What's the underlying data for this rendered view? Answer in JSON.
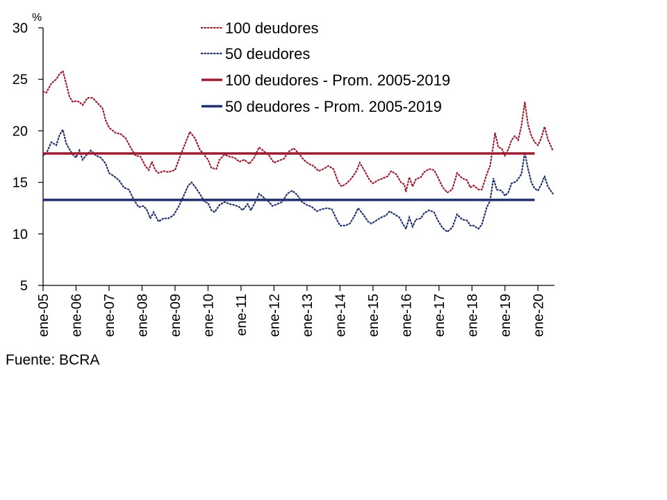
{
  "colors": {
    "series100": "#9b1b30",
    "series50": "#1f2f6b",
    "axis": "#000000"
  },
  "source": "Fuente: BCRA",
  "chart_data": {
    "type": "line",
    "unit_label": "%",
    "ylim": [
      5,
      30
    ],
    "yticks": [
      5,
      10,
      15,
      20,
      25,
      30
    ],
    "xlim": [
      2005.0,
      2020.5
    ],
    "xtick_labels": [
      "ene-05",
      "ene-06",
      "ene-07",
      "ene-08",
      "ene-09",
      "ene-10",
      "ene-11",
      "ene-12",
      "ene-13",
      "ene-14",
      "ene-15",
      "ene-16",
      "ene-17",
      "ene-18",
      "ene-19",
      "ene-20"
    ],
    "grid": false,
    "legend_position": "top",
    "series": [
      {
        "name": "100 deudores",
        "style": "dotted",
        "color": "#9b1b30",
        "points": [
          [
            2005.0,
            23.8
          ],
          [
            2005.1,
            23.7
          ],
          [
            2005.25,
            24.6
          ],
          [
            2005.4,
            25.0
          ],
          [
            2005.5,
            25.5
          ],
          [
            2005.6,
            25.8
          ],
          [
            2005.7,
            24.6
          ],
          [
            2005.8,
            23.3
          ],
          [
            2005.9,
            22.8
          ],
          [
            2006.0,
            22.9
          ],
          [
            2006.1,
            22.8
          ],
          [
            2006.2,
            22.5
          ],
          [
            2006.35,
            23.2
          ],
          [
            2006.5,
            23.2
          ],
          [
            2006.65,
            22.7
          ],
          [
            2006.8,
            22.2
          ],
          [
            2006.9,
            21.0
          ],
          [
            2007.0,
            20.3
          ],
          [
            2007.2,
            19.8
          ],
          [
            2007.35,
            19.7
          ],
          [
            2007.5,
            19.3
          ],
          [
            2007.65,
            18.4
          ],
          [
            2007.8,
            17.6
          ],
          [
            2007.95,
            17.5
          ],
          [
            2008.1,
            16.6
          ],
          [
            2008.2,
            16.2
          ],
          [
            2008.3,
            17.0
          ],
          [
            2008.4,
            16.2
          ],
          [
            2008.5,
            15.9
          ],
          [
            2008.65,
            16.1
          ],
          [
            2008.8,
            16.0
          ],
          [
            2009.0,
            16.2
          ],
          [
            2009.15,
            17.5
          ],
          [
            2009.3,
            18.7
          ],
          [
            2009.45,
            19.9
          ],
          [
            2009.6,
            19.3
          ],
          [
            2009.75,
            18.2
          ],
          [
            2009.9,
            17.6
          ],
          [
            2010.0,
            17.2
          ],
          [
            2010.1,
            16.4
          ],
          [
            2010.25,
            16.3
          ],
          [
            2010.35,
            17.2
          ],
          [
            2010.5,
            17.7
          ],
          [
            2010.65,
            17.5
          ],
          [
            2010.8,
            17.4
          ],
          [
            2010.95,
            17.0
          ],
          [
            2011.1,
            17.2
          ],
          [
            2011.25,
            16.8
          ],
          [
            2011.4,
            17.4
          ],
          [
            2011.55,
            18.4
          ],
          [
            2011.7,
            18.0
          ],
          [
            2011.85,
            17.6
          ],
          [
            2012.0,
            16.9
          ],
          [
            2012.15,
            17.1
          ],
          [
            2012.3,
            17.3
          ],
          [
            2012.45,
            18.0
          ],
          [
            2012.6,
            18.3
          ],
          [
            2012.75,
            17.8
          ],
          [
            2012.9,
            17.2
          ],
          [
            2013.05,
            16.8
          ],
          [
            2013.2,
            16.6
          ],
          [
            2013.35,
            16.1
          ],
          [
            2013.5,
            16.3
          ],
          [
            2013.65,
            16.6
          ],
          [
            2013.8,
            16.3
          ],
          [
            2013.95,
            15.0
          ],
          [
            2014.05,
            14.6
          ],
          [
            2014.2,
            14.9
          ],
          [
            2014.35,
            15.4
          ],
          [
            2014.5,
            16.1
          ],
          [
            2014.6,
            16.9
          ],
          [
            2014.75,
            16.1
          ],
          [
            2014.9,
            15.2
          ],
          [
            2015.0,
            14.9
          ],
          [
            2015.15,
            15.2
          ],
          [
            2015.3,
            15.4
          ],
          [
            2015.45,
            15.6
          ],
          [
            2015.55,
            16.1
          ],
          [
            2015.7,
            15.8
          ],
          [
            2015.85,
            15.0
          ],
          [
            2015.95,
            14.8
          ],
          [
            2016.0,
            14.1
          ],
          [
            2016.1,
            15.5
          ],
          [
            2016.2,
            14.6
          ],
          [
            2016.3,
            15.3
          ],
          [
            2016.45,
            15.5
          ],
          [
            2016.55,
            16.0
          ],
          [
            2016.7,
            16.3
          ],
          [
            2016.85,
            16.2
          ],
          [
            2016.95,
            15.6
          ],
          [
            2017.1,
            14.6
          ],
          [
            2017.25,
            14.0
          ],
          [
            2017.4,
            14.3
          ],
          [
            2017.55,
            15.9
          ],
          [
            2017.7,
            15.4
          ],
          [
            2017.85,
            15.2
          ],
          [
            2017.95,
            14.5
          ],
          [
            2018.05,
            14.7
          ],
          [
            2018.2,
            14.3
          ],
          [
            2018.3,
            14.3
          ],
          [
            2018.45,
            15.8
          ],
          [
            2018.55,
            16.6
          ],
          [
            2018.65,
            18.7
          ],
          [
            2018.7,
            19.8
          ],
          [
            2018.8,
            18.4
          ],
          [
            2018.9,
            18.3
          ],
          [
            2019.0,
            17.6
          ],
          [
            2019.1,
            18.2
          ],
          [
            2019.2,
            19.1
          ],
          [
            2019.3,
            19.5
          ],
          [
            2019.4,
            19.1
          ],
          [
            2019.5,
            20.5
          ],
          [
            2019.6,
            22.8
          ],
          [
            2019.7,
            20.6
          ],
          [
            2019.8,
            19.5
          ],
          [
            2019.9,
            18.9
          ],
          [
            2020.0,
            18.6
          ],
          [
            2020.1,
            19.3
          ],
          [
            2020.2,
            20.4
          ],
          [
            2020.3,
            19.2
          ],
          [
            2020.45,
            18.1
          ]
        ]
      },
      {
        "name": "50 deudores",
        "style": "dotted",
        "color": "#1f2f6b",
        "points": [
          [
            2005.0,
            17.6
          ],
          [
            2005.1,
            17.8
          ],
          [
            2005.25,
            18.9
          ],
          [
            2005.4,
            18.6
          ],
          [
            2005.5,
            19.6
          ],
          [
            2005.6,
            20.1
          ],
          [
            2005.7,
            18.8
          ],
          [
            2005.8,
            18.2
          ],
          [
            2005.9,
            17.7
          ],
          [
            2006.0,
            17.4
          ],
          [
            2006.1,
            18.1
          ],
          [
            2006.2,
            17.2
          ],
          [
            2006.3,
            17.6
          ],
          [
            2006.45,
            18.1
          ],
          [
            2006.6,
            17.6
          ],
          [
            2006.75,
            17.4
          ],
          [
            2006.9,
            16.8
          ],
          [
            2007.0,
            15.9
          ],
          [
            2007.15,
            15.6
          ],
          [
            2007.3,
            15.2
          ],
          [
            2007.45,
            14.5
          ],
          [
            2007.6,
            14.3
          ],
          [
            2007.75,
            13.3
          ],
          [
            2007.9,
            12.6
          ],
          [
            2008.05,
            12.7
          ],
          [
            2008.15,
            12.3
          ],
          [
            2008.25,
            11.5
          ],
          [
            2008.35,
            12.1
          ],
          [
            2008.5,
            11.2
          ],
          [
            2008.65,
            11.5
          ],
          [
            2008.8,
            11.5
          ],
          [
            2008.95,
            11.8
          ],
          [
            2009.1,
            12.6
          ],
          [
            2009.25,
            13.6
          ],
          [
            2009.4,
            14.7
          ],
          [
            2009.5,
            15.0
          ],
          [
            2009.6,
            14.6
          ],
          [
            2009.75,
            13.9
          ],
          [
            2009.9,
            13.1
          ],
          [
            2010.0,
            13.0
          ],
          [
            2010.1,
            12.3
          ],
          [
            2010.2,
            12.1
          ],
          [
            2010.35,
            12.8
          ],
          [
            2010.5,
            13.1
          ],
          [
            2010.65,
            12.9
          ],
          [
            2010.8,
            12.8
          ],
          [
            2010.95,
            12.6
          ],
          [
            2011.05,
            12.3
          ],
          [
            2011.2,
            12.9
          ],
          [
            2011.3,
            12.3
          ],
          [
            2011.45,
            13.2
          ],
          [
            2011.55,
            13.9
          ],
          [
            2011.7,
            13.5
          ],
          [
            2011.85,
            13.1
          ],
          [
            2011.95,
            12.7
          ],
          [
            2012.1,
            12.9
          ],
          [
            2012.25,
            13.1
          ],
          [
            2012.4,
            13.9
          ],
          [
            2012.55,
            14.2
          ],
          [
            2012.7,
            13.8
          ],
          [
            2012.85,
            13.1
          ],
          [
            2013.0,
            12.8
          ],
          [
            2013.15,
            12.6
          ],
          [
            2013.3,
            12.2
          ],
          [
            2013.45,
            12.4
          ],
          [
            2013.6,
            12.5
          ],
          [
            2013.75,
            12.4
          ],
          [
            2013.9,
            11.4
          ],
          [
            2014.0,
            10.8
          ],
          [
            2014.15,
            10.8
          ],
          [
            2014.3,
            11.0
          ],
          [
            2014.45,
            11.8
          ],
          [
            2014.55,
            12.5
          ],
          [
            2014.7,
            11.9
          ],
          [
            2014.85,
            11.2
          ],
          [
            2014.95,
            11.0
          ],
          [
            2015.1,
            11.3
          ],
          [
            2015.25,
            11.6
          ],
          [
            2015.4,
            11.8
          ],
          [
            2015.5,
            12.2
          ],
          [
            2015.65,
            11.9
          ],
          [
            2015.8,
            11.6
          ],
          [
            2015.9,
            11.0
          ],
          [
            2016.0,
            10.5
          ],
          [
            2016.1,
            11.6
          ],
          [
            2016.2,
            10.7
          ],
          [
            2016.3,
            11.4
          ],
          [
            2016.45,
            11.5
          ],
          [
            2016.55,
            12.0
          ],
          [
            2016.7,
            12.3
          ],
          [
            2016.85,
            12.1
          ],
          [
            2016.95,
            11.4
          ],
          [
            2017.1,
            10.6
          ],
          [
            2017.25,
            10.2
          ],
          [
            2017.4,
            10.6
          ],
          [
            2017.55,
            11.9
          ],
          [
            2017.7,
            11.4
          ],
          [
            2017.85,
            11.3
          ],
          [
            2017.95,
            10.8
          ],
          [
            2018.05,
            10.8
          ],
          [
            2018.2,
            10.5
          ],
          [
            2018.3,
            10.9
          ],
          [
            2018.45,
            12.6
          ],
          [
            2018.55,
            13.2
          ],
          [
            2018.65,
            15.4
          ],
          [
            2018.75,
            14.3
          ],
          [
            2018.9,
            14.2
          ],
          [
            2019.0,
            13.7
          ],
          [
            2019.1,
            14.0
          ],
          [
            2019.2,
            14.9
          ],
          [
            2019.35,
            15.1
          ],
          [
            2019.5,
            15.8
          ],
          [
            2019.6,
            17.9
          ],
          [
            2019.7,
            16.3
          ],
          [
            2019.8,
            15.0
          ],
          [
            2019.9,
            14.4
          ],
          [
            2020.0,
            14.2
          ],
          [
            2020.1,
            14.8
          ],
          [
            2020.2,
            15.6
          ],
          [
            2020.3,
            14.6
          ],
          [
            2020.45,
            13.9
          ]
        ]
      },
      {
        "name": "100 deudores - Prom. 2005-2019",
        "style": "solid",
        "color": "#9b1b30",
        "x": [
          2005.0,
          2019.9
        ],
        "value": 17.8
      },
      {
        "name": "50 deudores - Prom. 2005-2019",
        "style": "solid",
        "color": "#1f2f6b",
        "x": [
          2005.0,
          2019.9
        ],
        "value": 13.3
      }
    ]
  }
}
